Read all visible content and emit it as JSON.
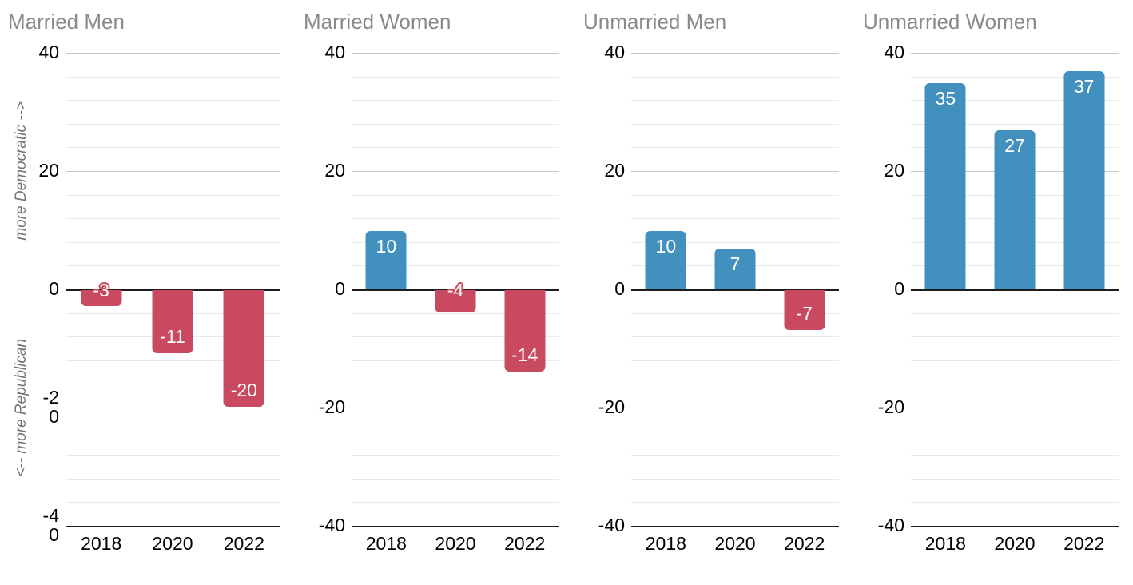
{
  "axis": {
    "ylim": [
      -40,
      40
    ],
    "major_ticks": [
      40,
      20,
      0,
      -20,
      -40
    ],
    "minor_step": 4,
    "label_top": "more Democratic -->",
    "label_bottom": "<-- more Republican"
  },
  "colors": {
    "democratic_blue": "#4190bd",
    "republican_red": "#c94a60",
    "title_gray": "#8a8a8a",
    "axis_label_gray": "#757575",
    "grid_major": "#c6c6c6",
    "grid_minor": "#e9e9e9",
    "axis_line_black": "#1c1c1c",
    "bar_label_white": "#ffffff"
  },
  "chart_data": [
    {
      "type": "bar",
      "title": "Married Men",
      "categories": [
        "2018",
        "2020",
        "2022"
      ],
      "values": [
        -3,
        -11,
        -20
      ],
      "ylabel": "",
      "ylim": [
        -40,
        40
      ],
      "legend": "none",
      "grid": "on"
    },
    {
      "type": "bar",
      "title": "Married Women",
      "categories": [
        "2018",
        "2020",
        "2022"
      ],
      "values": [
        10,
        -4,
        -14
      ],
      "ylabel": "",
      "ylim": [
        -40,
        40
      ],
      "legend": "none",
      "grid": "on"
    },
    {
      "type": "bar",
      "title": "Unmarried Men",
      "categories": [
        "2018",
        "2020",
        "2022"
      ],
      "values": [
        10,
        7,
        -7
      ],
      "ylabel": "",
      "ylim": [
        -40,
        40
      ],
      "legend": "none",
      "grid": "on"
    },
    {
      "type": "bar",
      "title": "Unmarried Women",
      "categories": [
        "2018",
        "2020",
        "2022"
      ],
      "values": [
        35,
        27,
        37
      ],
      "ylabel": "",
      "ylim": [
        -40,
        40
      ],
      "legend": "none",
      "grid": "on"
    }
  ]
}
